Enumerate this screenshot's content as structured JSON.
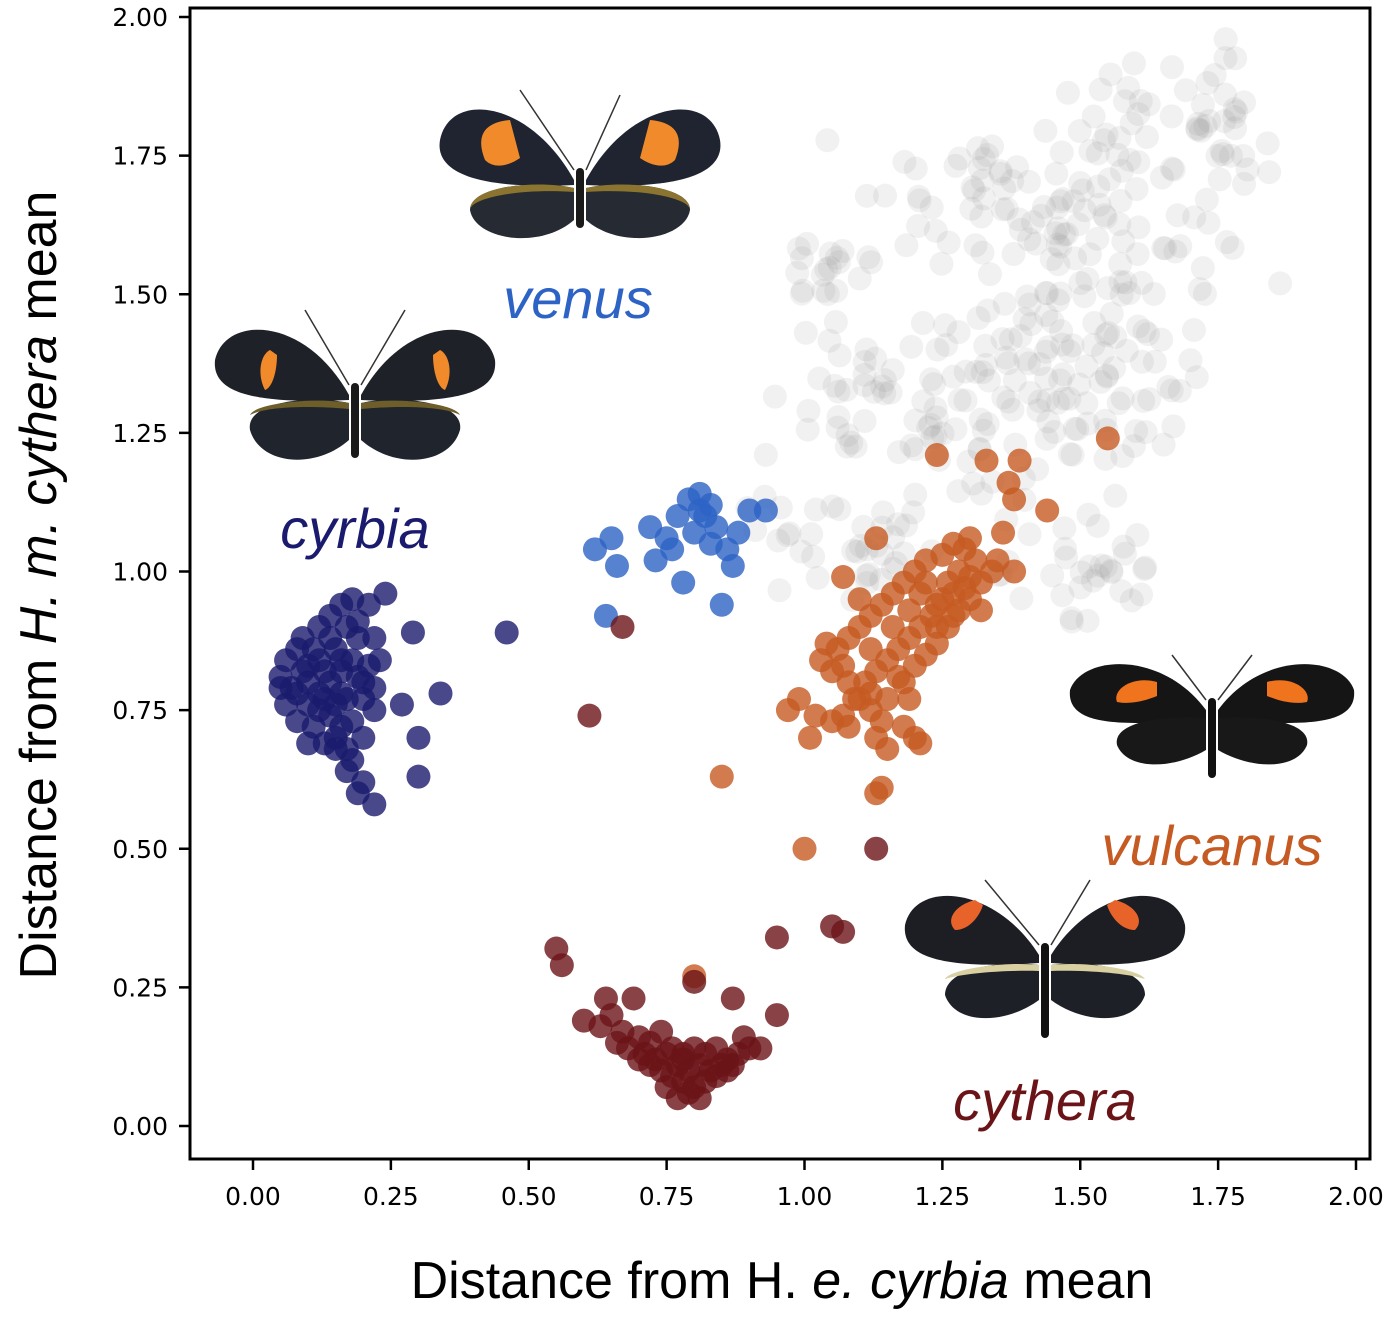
{
  "chart_data": {
    "type": "scatter",
    "xlabel_parts": [
      "Distance from H",
      ". ",
      "e. cyrbia",
      " mean"
    ],
    "ylabel_parts": [
      "Distance from ",
      "H. m. cythera",
      " mean"
    ],
    "xlim": [
      -0.12,
      2.03
    ],
    "ylim": [
      -0.06,
      2.03
    ],
    "xticks": [
      "0.00",
      "0.25",
      "0.50",
      "0.75",
      "1.00",
      "1.25",
      "1.50",
      "1.75",
      "2.00"
    ],
    "yticks": [
      "0.00",
      "0.25",
      "0.50",
      "0.75",
      "1.00",
      "1.25",
      "1.50",
      "1.75",
      "2.00"
    ],
    "grid": false,
    "series": [
      {
        "name": "cyrbia",
        "label": "cyrbia",
        "color": "#1a1a6e",
        "opacity": 0.8,
        "points": [
          [
            0.29,
            0.89
          ],
          [
            0.46,
            0.89
          ],
          [
            0.34,
            0.78
          ],
          [
            0.27,
            0.76
          ],
          [
            0.3,
            0.7
          ],
          [
            0.3,
            0.63
          ],
          [
            0.22,
            0.58
          ],
          [
            0.24,
            0.96
          ],
          [
            0.21,
            0.94
          ],
          [
            0.19,
            0.91
          ],
          [
            0.22,
            0.88
          ],
          [
            0.23,
            0.84
          ],
          [
            0.2,
            0.8
          ],
          [
            0.22,
            0.75
          ],
          [
            0.2,
            0.7
          ],
          [
            0.18,
            0.66
          ],
          [
            0.2,
            0.62
          ],
          [
            0.19,
            0.6
          ],
          [
            0.17,
            0.64
          ],
          [
            0.15,
            0.68
          ],
          [
            0.13,
            0.69
          ],
          [
            0.1,
            0.69
          ],
          [
            0.08,
            0.73
          ],
          [
            0.06,
            0.76
          ],
          [
            0.05,
            0.79
          ],
          [
            0.05,
            0.81
          ],
          [
            0.06,
            0.84
          ],
          [
            0.08,
            0.86
          ],
          [
            0.09,
            0.88
          ],
          [
            0.12,
            0.9
          ],
          [
            0.14,
            0.92
          ],
          [
            0.16,
            0.94
          ],
          [
            0.18,
            0.95
          ],
          [
            0.1,
            0.8
          ],
          [
            0.12,
            0.78
          ],
          [
            0.14,
            0.8
          ],
          [
            0.16,
            0.82
          ],
          [
            0.18,
            0.84
          ],
          [
            0.14,
            0.74
          ],
          [
            0.16,
            0.72
          ],
          [
            0.12,
            0.84
          ],
          [
            0.1,
            0.76
          ],
          [
            0.17,
            0.77
          ],
          [
            0.15,
            0.86
          ],
          [
            0.19,
            0.88
          ],
          [
            0.11,
            0.72
          ],
          [
            0.13,
            0.82
          ],
          [
            0.16,
            0.78
          ],
          [
            0.08,
            0.78
          ],
          [
            0.18,
            0.73
          ],
          [
            0.15,
            0.7
          ],
          [
            0.17,
            0.9
          ],
          [
            0.21,
            0.83
          ],
          [
            0.09,
            0.82
          ],
          [
            0.13,
            0.77
          ],
          [
            0.2,
            0.77
          ],
          [
            0.15,
            0.76
          ],
          [
            0.12,
            0.75
          ],
          [
            0.19,
            0.81
          ],
          [
            0.16,
            0.84
          ],
          [
            0.14,
            0.88
          ],
          [
            0.11,
            0.86
          ],
          [
            0.07,
            0.79
          ],
          [
            0.17,
            0.68
          ],
          [
            0.1,
            0.83
          ],
          [
            0.22,
            0.79
          ]
        ]
      },
      {
        "name": "venus",
        "label": "venus",
        "color": "#2d63c4",
        "opacity": 0.8,
        "points": [
          [
            0.65,
            1.06
          ],
          [
            0.62,
            1.04
          ],
          [
            0.66,
            1.01
          ],
          [
            0.64,
            0.92
          ],
          [
            0.72,
            1.08
          ],
          [
            0.73,
            1.02
          ],
          [
            0.76,
            1.04
          ],
          [
            0.78,
            0.98
          ],
          [
            0.79,
            1.13
          ],
          [
            0.81,
            1.14
          ],
          [
            0.82,
            1.1
          ],
          [
            0.84,
            1.08
          ],
          [
            0.8,
            1.07
          ],
          [
            0.77,
            1.1
          ],
          [
            0.83,
            1.05
          ],
          [
            0.86,
            1.04
          ],
          [
            0.87,
            1.01
          ],
          [
            0.85,
            0.94
          ],
          [
            0.9,
            1.11
          ],
          [
            0.93,
            1.11
          ],
          [
            0.88,
            1.07
          ],
          [
            0.81,
            1.11
          ],
          [
            0.75,
            1.06
          ],
          [
            0.83,
            1.12
          ]
        ]
      },
      {
        "name": "vulcanus",
        "label": "vulcanus",
        "color": "#c55a22",
        "opacity": 0.8,
        "points": [
          [
            1.55,
            1.24
          ],
          [
            1.24,
            1.21
          ],
          [
            1.33,
            1.2
          ],
          [
            1.39,
            1.2
          ],
          [
            1.37,
            1.16
          ],
          [
            1.38,
            1.13
          ],
          [
            1.44,
            1.11
          ],
          [
            1.36,
            1.07
          ],
          [
            1.3,
            1.06
          ],
          [
            1.27,
            1.05
          ],
          [
            1.25,
            1.03
          ],
          [
            1.22,
            1.02
          ],
          [
            1.2,
            1.0
          ],
          [
            1.18,
            0.98
          ],
          [
            1.16,
            0.96
          ],
          [
            1.14,
            0.94
          ],
          [
            1.12,
            0.92
          ],
          [
            1.1,
            0.9
          ],
          [
            1.08,
            0.88
          ],
          [
            1.06,
            0.86
          ],
          [
            1.04,
            0.87
          ],
          [
            1.03,
            0.84
          ],
          [
            1.05,
            0.82
          ],
          [
            1.08,
            0.8
          ],
          [
            1.1,
            0.77
          ],
          [
            1.12,
            0.75
          ],
          [
            1.15,
            0.77
          ],
          [
            1.18,
            0.8
          ],
          [
            1.2,
            0.83
          ],
          [
            1.22,
            0.85
          ],
          [
            1.24,
            0.87
          ],
          [
            1.26,
            0.9
          ],
          [
            1.28,
            0.93
          ],
          [
            1.3,
            0.95
          ],
          [
            1.32,
            0.98
          ],
          [
            1.34,
            1.0
          ],
          [
            1.25,
            0.95
          ],
          [
            1.23,
            0.92
          ],
          [
            1.21,
            0.9
          ],
          [
            1.19,
            0.88
          ],
          [
            1.17,
            0.86
          ],
          [
            1.15,
            0.84
          ],
          [
            1.13,
            0.82
          ],
          [
            1.11,
            0.8
          ],
          [
            1.09,
            0.77
          ],
          [
            1.07,
            0.74
          ],
          [
            1.05,
            0.73
          ],
          [
            1.02,
            0.74
          ],
          [
            0.99,
            0.77
          ],
          [
            0.97,
            0.75
          ],
          [
            1.01,
            0.7
          ],
          [
            1.08,
            0.72
          ],
          [
            1.13,
            0.7
          ],
          [
            1.15,
            0.68
          ],
          [
            1.18,
            0.72
          ],
          [
            1.2,
            0.7
          ],
          [
            1.21,
            0.69
          ],
          [
            1.14,
            0.61
          ],
          [
            1.13,
            0.6
          ],
          [
            0.85,
            0.63
          ],
          [
            1.0,
            0.5
          ],
          [
            1.07,
            0.99
          ],
          [
            1.13,
            1.06
          ],
          [
            1.38,
            1.0
          ],
          [
            1.28,
            1.0
          ],
          [
            1.29,
            0.97
          ],
          [
            1.27,
            0.92
          ],
          [
            1.24,
            0.9
          ],
          [
            1.21,
            0.96
          ],
          [
            1.19,
            0.93
          ],
          [
            1.16,
            0.9
          ],
          [
            1.22,
            0.98
          ],
          [
            1.26,
            0.98
          ],
          [
            1.31,
            1.02
          ],
          [
            1.29,
            1.04
          ],
          [
            1.17,
            0.81
          ],
          [
            1.12,
            0.86
          ],
          [
            1.1,
            0.95
          ],
          [
            1.07,
            0.83
          ],
          [
            1.12,
            0.78
          ],
          [
            1.19,
            0.77
          ],
          [
            1.14,
            0.73
          ],
          [
            1.24,
            0.94
          ],
          [
            1.27,
            0.96
          ],
          [
            1.32,
            0.93
          ],
          [
            1.3,
            0.99
          ],
          [
            1.35,
            1.02
          ],
          [
            0.8,
            0.27
          ]
        ]
      },
      {
        "name": "cythera",
        "label": "cythera",
        "color": "#6b1418",
        "opacity": 0.8,
        "points": [
          [
            1.13,
            0.5
          ],
          [
            0.67,
            0.9
          ],
          [
            0.61,
            0.74
          ],
          [
            1.05,
            0.36
          ],
          [
            1.07,
            0.35
          ],
          [
            0.95,
            0.34
          ],
          [
            0.55,
            0.32
          ],
          [
            0.56,
            0.29
          ],
          [
            0.64,
            0.23
          ],
          [
            0.69,
            0.23
          ],
          [
            0.87,
            0.23
          ],
          [
            0.95,
            0.2
          ],
          [
            0.6,
            0.19
          ],
          [
            0.63,
            0.18
          ],
          [
            0.65,
            0.2
          ],
          [
            0.67,
            0.17
          ],
          [
            0.7,
            0.16
          ],
          [
            0.72,
            0.15
          ],
          [
            0.74,
            0.17
          ],
          [
            0.76,
            0.14
          ],
          [
            0.78,
            0.13
          ],
          [
            0.8,
            0.14
          ],
          [
            0.82,
            0.13
          ],
          [
            0.84,
            0.14
          ],
          [
            0.86,
            0.12
          ],
          [
            0.88,
            0.13
          ],
          [
            0.9,
            0.14
          ],
          [
            0.7,
            0.12
          ],
          [
            0.72,
            0.11
          ],
          [
            0.74,
            0.1
          ],
          [
            0.76,
            0.09
          ],
          [
            0.78,
            0.08
          ],
          [
            0.8,
            0.07
          ],
          [
            0.82,
            0.08
          ],
          [
            0.84,
            0.09
          ],
          [
            0.86,
            0.1
          ],
          [
            0.79,
            0.06
          ],
          [
            0.77,
            0.05
          ],
          [
            0.81,
            0.05
          ],
          [
            0.75,
            0.07
          ],
          [
            0.73,
            0.12
          ],
          [
            0.68,
            0.14
          ],
          [
            0.66,
            0.15
          ],
          [
            0.92,
            0.14
          ],
          [
            0.89,
            0.16
          ],
          [
            0.83,
            0.1
          ],
          [
            0.77,
            0.11
          ],
          [
            0.75,
            0.13
          ],
          [
            0.79,
            0.1
          ],
          [
            0.81,
            0.11
          ],
          [
            0.85,
            0.11
          ],
          [
            0.87,
            0.11
          ],
          [
            0.71,
            0.13
          ],
          [
            0.78,
            0.12
          ],
          [
            0.8,
            0.26
          ]
        ]
      },
      {
        "name": "other",
        "color": "#8c8c8c",
        "opacity": 0.12,
        "clouds": [
          {
            "cx": 1.4,
            "cy": 1.28,
            "sx": 0.1,
            "sy": 0.1,
            "n": 70
          },
          {
            "cx": 1.12,
            "cy": 1.3,
            "sx": 0.1,
            "sy": 0.06,
            "n": 40
          },
          {
            "cx": 1.08,
            "cy": 1.05,
            "sx": 0.08,
            "sy": 0.06,
            "n": 30
          },
          {
            "cx": 1.05,
            "cy": 1.55,
            "sx": 0.06,
            "sy": 0.04,
            "n": 18
          },
          {
            "cx": 1.32,
            "cy": 1.72,
            "sx": 0.08,
            "sy": 0.05,
            "n": 30
          },
          {
            "cx": 1.47,
            "cy": 1.62,
            "sx": 0.06,
            "sy": 0.06,
            "n": 30
          },
          {
            "cx": 1.45,
            "cy": 1.45,
            "sx": 0.06,
            "sy": 0.06,
            "n": 22
          },
          {
            "cx": 1.6,
            "cy": 1.35,
            "sx": 0.06,
            "sy": 0.1,
            "n": 35
          },
          {
            "cx": 1.6,
            "cy": 1.8,
            "sx": 0.07,
            "sy": 0.05,
            "n": 25
          },
          {
            "cx": 1.75,
            "cy": 1.75,
            "sx": 0.05,
            "sy": 0.09,
            "n": 35
          },
          {
            "cx": 1.52,
            "cy": 1.0,
            "sx": 0.08,
            "sy": 0.08,
            "n": 28
          },
          {
            "cx": 1.62,
            "cy": 1.6,
            "sx": 0.1,
            "sy": 0.15,
            "n": 25
          },
          {
            "cx": 1.25,
            "cy": 1.5,
            "sx": 0.1,
            "sy": 0.12,
            "n": 20
          },
          {
            "cx": 0.95,
            "cy": 1.05,
            "sx": 0.05,
            "sy": 0.04,
            "n": 8
          }
        ]
      }
    ]
  }
}
